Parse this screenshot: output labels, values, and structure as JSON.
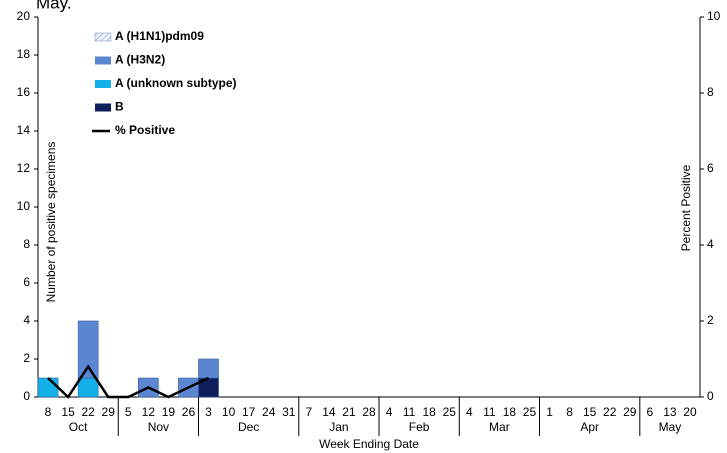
{
  "chart_data": {
    "type": "bar",
    "title": "May.",
    "xlabel": "Week Ending Date",
    "ylabel": "Number of positive specimens",
    "y2label": "Percent Positive",
    "category_groups": [
      {
        "name": "Oct",
        "categories": [
          "8",
          "15",
          "22",
          "29"
        ]
      },
      {
        "name": "Nov",
        "categories": [
          "5",
          "12",
          "19",
          "26"
        ]
      },
      {
        "name": "Dec",
        "categories": [
          "3",
          "10",
          "17",
          "24",
          "31"
        ]
      },
      {
        "name": "Jan",
        "categories": [
          "7",
          "14",
          "21",
          "28"
        ]
      },
      {
        "name": "Feb",
        "categories": [
          "4",
          "11",
          "18",
          "25"
        ]
      },
      {
        "name": "Mar",
        "categories": [
          "4",
          "11",
          "18",
          "25"
        ]
      },
      {
        "name": "Apr",
        "categories": [
          "1",
          "8",
          "15",
          "22",
          "29"
        ]
      },
      {
        "name": "May",
        "categories": [
          "6",
          "13",
          "20"
        ]
      }
    ],
    "series": [
      {
        "name": "A (H1N1)pdm09",
        "color": "#dfe6f2",
        "hatch": true,
        "values": [
          0,
          0,
          0,
          0,
          0,
          0,
          0,
          0,
          0,
          0,
          0,
          0,
          0,
          0,
          0,
          0,
          0,
          0,
          0,
          0,
          0,
          0,
          0,
          0,
          0,
          0,
          0,
          0,
          0,
          0,
          0,
          0,
          0
        ]
      },
      {
        "name": "A (H3N2)",
        "color": "#5b87d2",
        "values": [
          0,
          0,
          3,
          0,
          0,
          1,
          0,
          1,
          1,
          0,
          0,
          0,
          0,
          0,
          0,
          0,
          0,
          0,
          0,
          0,
          0,
          0,
          0,
          0,
          0,
          0,
          0,
          0,
          0,
          0,
          0,
          0,
          0
        ]
      },
      {
        "name": "A (unknown subtype)",
        "color": "#13b0ea",
        "values": [
          1,
          0,
          1,
          0,
          0,
          0,
          0,
          0,
          0,
          0,
          0,
          0,
          0,
          0,
          0,
          0,
          0,
          0,
          0,
          0,
          0,
          0,
          0,
          0,
          0,
          0,
          0,
          0,
          0,
          0,
          0,
          0,
          0
        ]
      },
      {
        "name": "B",
        "color": "#0f1f5c",
        "values": [
          0,
          0,
          0,
          0,
          0,
          0,
          0,
          0,
          1,
          0,
          0,
          0,
          0,
          0,
          0,
          0,
          0,
          0,
          0,
          0,
          0,
          0,
          0,
          0,
          0,
          0,
          0,
          0,
          0,
          0,
          0,
          0,
          0
        ]
      },
      {
        "name": "% Positive",
        "color": "#000000",
        "type": "line",
        "axis": "y2",
        "values": [
          0.5,
          0,
          0.8,
          0,
          0,
          0.25,
          0,
          0.25,
          0.5,
          null,
          null,
          null,
          null,
          null,
          null,
          null,
          null,
          null,
          null,
          null,
          null,
          null,
          null,
          null,
          null,
          null,
          null,
          null,
          null,
          null,
          null,
          null,
          null
        ]
      }
    ],
    "stack_order": [
      "B",
      "A (unknown subtype)",
      "A (H3N2)",
      "A (H1N1)pdm09"
    ],
    "ylim": [
      0,
      20
    ],
    "yticks": [
      0,
      2,
      4,
      6,
      8,
      10,
      12,
      14,
      16,
      18,
      20
    ],
    "y2lim": [
      0,
      10
    ],
    "y2ticks": [
      0,
      2,
      4,
      6,
      8,
      10
    ]
  }
}
